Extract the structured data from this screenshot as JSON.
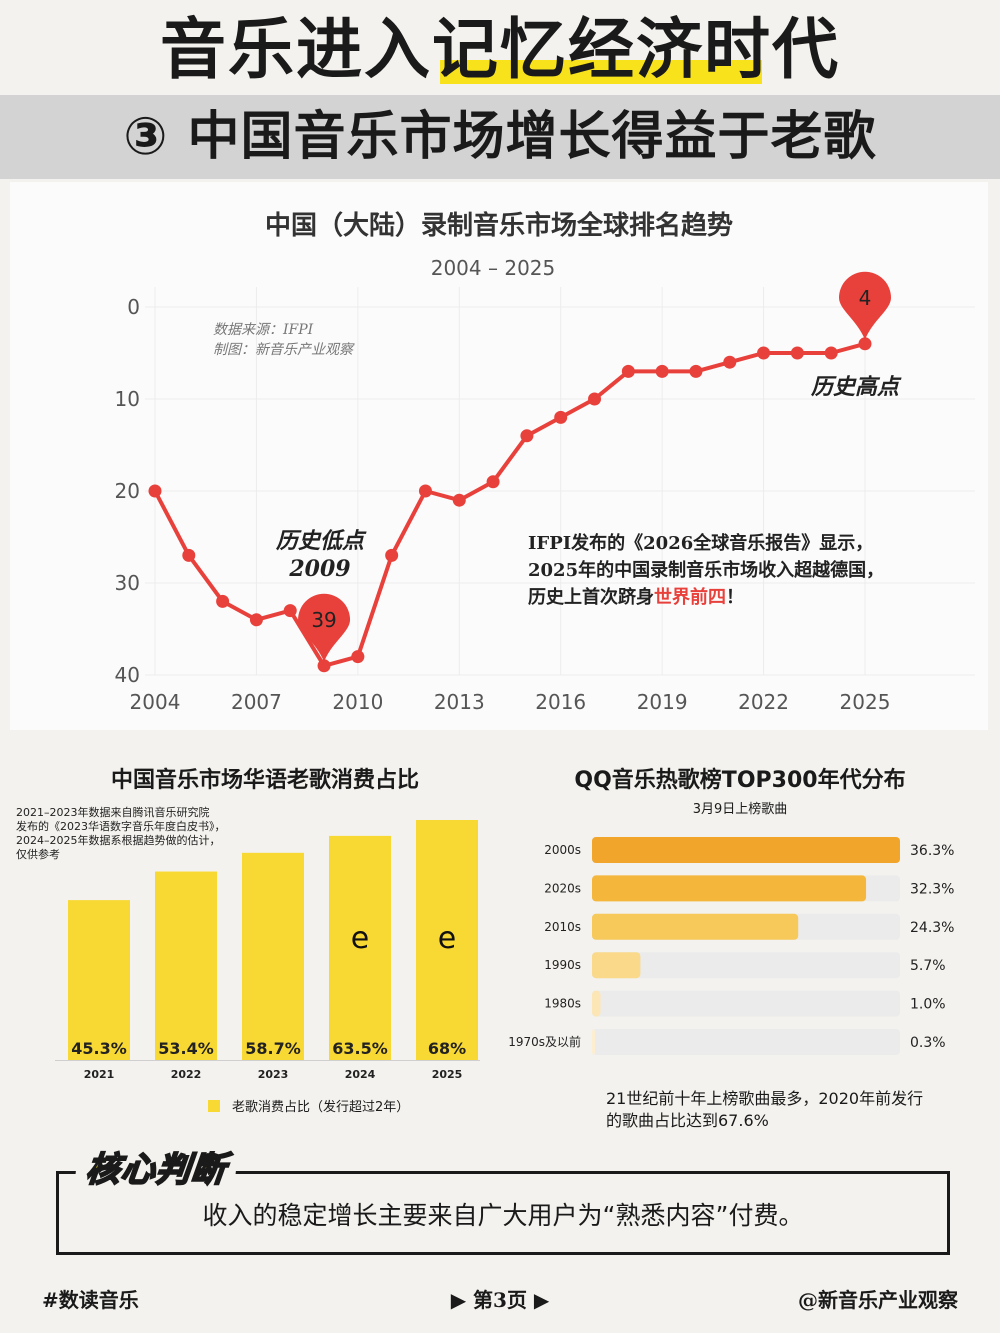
{
  "header": {
    "title": "音乐进入记忆经济时代",
    "subtitle": "③ 中国音乐市场增长得益于老歌"
  },
  "chart_data": [
    {
      "type": "line",
      "title": "中国（大陆）录制音乐市场全球排名趋势",
      "subtitle": "2004 – 2025",
      "source": "数据来源：IFPI",
      "credit": "制图：新音乐产业观察",
      "x": [
        2004,
        2005,
        2006,
        2007,
        2008,
        2009,
        2010,
        2011,
        2012,
        2013,
        2014,
        2015,
        2016,
        2017,
        2018,
        2019,
        2020,
        2021,
        2022,
        2023,
        2024,
        2025
      ],
      "y": [
        20,
        27,
        32,
        34,
        33,
        39,
        38,
        27,
        20,
        21,
        19,
        14,
        12,
        10,
        7,
        7,
        7,
        6,
        5,
        5,
        5,
        4
      ],
      "xticks": [
        "2004",
        "2007",
        "2010",
        "2013",
        "2016",
        "2019",
        "2022",
        "2025"
      ],
      "yticks": [
        "0",
        "10",
        "20",
        "30",
        "40"
      ],
      "ylim": [
        0,
        40
      ],
      "y_inverted": true,
      "color": "#e8413c",
      "markers": [
        {
          "year": 2009,
          "label": "39"
        },
        {
          "year": 2025,
          "label": "4"
        }
      ],
      "annotations": {
        "low_line1": "历史低点",
        "low_line2": "2009",
        "high": "历史高点",
        "text_line1": "IFPI发布的《2026全球音乐报告》显示，",
        "text_line2": "2025年的中国录制音乐市场收入超越德国，",
        "text_line3_pre": "历史上首次跻身",
        "text_line3_hl": "世界前四",
        "text_line3_post": "！"
      }
    },
    {
      "type": "bar",
      "title": "中国音乐市场华语老歌消费占比",
      "note": [
        "2021–2023年数据来自腾讯音乐研究院",
        "发布的《2023华语数字音乐年度白皮书》，",
        "2024–2025年数据系根据趋势做的估计，",
        "仅供参考"
      ],
      "categories": [
        "2021",
        "2022",
        "2023",
        "2024",
        "2025"
      ],
      "values": [
        45.3,
        53.4,
        58.7,
        63.5,
        68
      ],
      "labels": [
        "45.3%",
        "53.4%",
        "58.7%",
        "63.5%",
        "68%"
      ],
      "estimated": [
        false,
        false,
        false,
        true,
        true
      ],
      "estimate_mark": "e",
      "legend": "老歌消费占比（发行超过2年）",
      "color": "#f8d833"
    },
    {
      "type": "bar",
      "orientation": "horizontal",
      "title": "QQ音乐热歌榜TOP300年代分布",
      "subtitle": "3月9日上榜歌曲",
      "categories": [
        "2000s",
        "2020s",
        "2010s",
        "1990s",
        "1980s",
        "1970s及以前"
      ],
      "values": [
        36.3,
        32.3,
        24.3,
        5.7,
        1.0,
        0.3
      ],
      "labels": [
        "36.3%",
        "32.3%",
        "24.3%",
        "5.7%",
        "1.0%",
        "0.3%"
      ],
      "colors": [
        "#f2a52b",
        "#f5b73b",
        "#f6c95a",
        "#fad98a",
        "#fce6b5",
        "#fdeed0"
      ],
      "track_color": "#ebebeb",
      "note": "21世纪前十年上榜歌曲最多，2020年前发行的歌曲占比达到67.6%"
    }
  ],
  "core": {
    "label": "核心判断",
    "text": "收入的稳定增长主要来自广大用户为“熟悉内容”付费。"
  },
  "footer": {
    "left": "#数读音乐",
    "center": "▶ 第3页 ▶",
    "right": "@新音乐产业观察"
  }
}
